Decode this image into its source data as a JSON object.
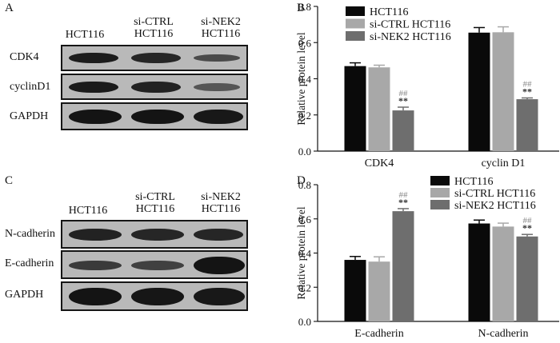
{
  "panels": {
    "A": {
      "letter": "A",
      "lanes": [
        {
          "line1": "HCT116",
          "line2": ""
        },
        {
          "line1": "si-CTRL",
          "line2": "HCT116"
        },
        {
          "line1": "si-NEK2",
          "line2": "HCT116"
        }
      ],
      "rows": [
        "CDK4",
        "cyclinD1",
        "GAPDH"
      ]
    },
    "C": {
      "letter": "C",
      "lanes": [
        {
          "line1": "HCT116",
          "line2": ""
        },
        {
          "line1": "si-CTRL",
          "line2": "HCT116"
        },
        {
          "line1": "si-NEK2",
          "line2": "HCT116"
        }
      ],
      "rows": [
        "N-cadherin",
        "E-cadherin",
        "GAPDH"
      ]
    },
    "B": {
      "letter": "B"
    },
    "D": {
      "letter": "D"
    }
  },
  "chart_data": [
    {
      "panel": "B",
      "type": "bar",
      "ylabel": "Relative protein level",
      "ylim": [
        0,
        0.8
      ],
      "yticks": [
        "0.0",
        "0.2",
        "0.4",
        "0.6",
        "0.8"
      ],
      "categories": [
        "CDK4",
        "cyclin D1"
      ],
      "legend_position": "top-left",
      "series": [
        {
          "name": "HCT116",
          "color": "#0a0a0a",
          "values": [
            0.47,
            0.655
          ],
          "errors": [
            0.018,
            0.028
          ]
        },
        {
          "name": "si-CTRL HCT116",
          "color": "#a8a8a8",
          "values": [
            0.463,
            0.657
          ],
          "errors": [
            0.012,
            0.03
          ]
        },
        {
          "name": "si-NEK2 HCT116",
          "color": "#6e6e6e",
          "values": [
            0.225,
            0.287
          ],
          "errors": [
            0.018,
            0.007
          ]
        }
      ],
      "annotations": [
        {
          "category": 0,
          "series": 2,
          "top": "##",
          "bottom": "**"
        },
        {
          "category": 1,
          "series": 2,
          "top": "##",
          "bottom": "**"
        }
      ]
    },
    {
      "panel": "D",
      "type": "bar",
      "ylabel": "Relative protein level",
      "ylim": [
        0,
        0.8
      ],
      "yticks": [
        "0.0",
        "0.2",
        "0.4",
        "0.6",
        "0.8"
      ],
      "categories": [
        "E-cadherin",
        "N-cadherin"
      ],
      "legend_position": "top-right",
      "series": [
        {
          "name": "HCT116",
          "color": "#0a0a0a",
          "values": [
            0.36,
            0.573
          ],
          "errors": [
            0.02,
            0.02
          ]
        },
        {
          "name": "si-CTRL HCT116",
          "color": "#a8a8a8",
          "values": [
            0.35,
            0.555
          ],
          "errors": [
            0.028,
            0.02
          ]
        },
        {
          "name": "si-NEK2 HCT116",
          "color": "#6e6e6e",
          "values": [
            0.645,
            0.497
          ],
          "errors": [
            0.015,
            0.012
          ]
        }
      ],
      "annotations": [
        {
          "category": 0,
          "series": 2,
          "top": "##",
          "bottom": "**"
        },
        {
          "category": 1,
          "series": 2,
          "top": "##",
          "bottom": "**"
        }
      ]
    }
  ]
}
